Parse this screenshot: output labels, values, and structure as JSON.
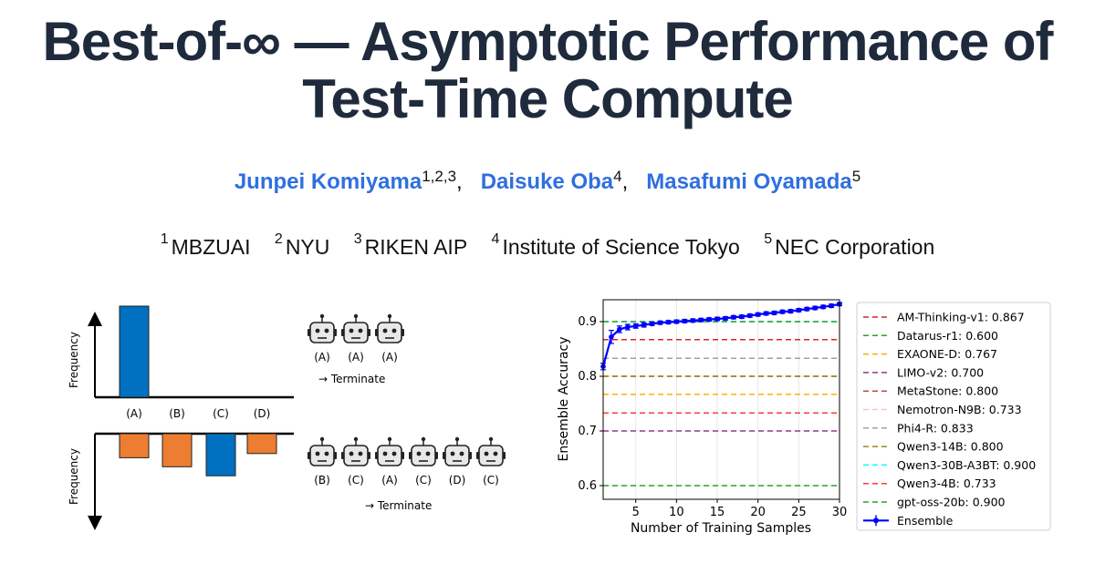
{
  "title_line1": "Best-of-∞ — Asymptotic Performance of",
  "title_line2": "Test-Time Compute",
  "authors": [
    {
      "name": "Junpei Komiyama",
      "sup": "1,2,3",
      "sep": ","
    },
    {
      "name": "Daisuke Oba",
      "sup": "4",
      "sep": ","
    },
    {
      "name": "Masafumi Oyamada",
      "sup": "5",
      "sep": ""
    }
  ],
  "affiliations": [
    {
      "num": "1",
      "name": "MBZUAI"
    },
    {
      "num": "2",
      "name": "NYU"
    },
    {
      "num": "3",
      "name": "RIKEN AIP"
    },
    {
      "num": "4",
      "name": "Institute of Science Tokyo"
    },
    {
      "num": "5",
      "name": "NEC Corporation"
    }
  ],
  "left_figure": {
    "top_panel": {
      "ylabel": "Frequency",
      "categories": [
        "(A)",
        "(B)",
        "(C)",
        "(D)"
      ],
      "values": [
        1.0,
        0,
        0,
        0
      ],
      "bar_color": "#0070c0",
      "robots": [
        "(A)",
        "(A)",
        "(A)"
      ],
      "terminate": "→ Terminate"
    },
    "bottom_panel": {
      "ylabel": "Frequency",
      "values": [
        0.4,
        0.55,
        0.7,
        0.33
      ],
      "colors": [
        "#ed7d31",
        "#ed7d31",
        "#0070c0",
        "#ed7d31"
      ],
      "robots": [
        "(B)",
        "(C)",
        "(A)",
        "(C)",
        "(D)",
        "(C)"
      ],
      "terminate": "→ Terminate"
    }
  },
  "chart_data": {
    "type": "line",
    "xlabel": "Number of Training Samples",
    "ylabel": "Ensemble Accuracy",
    "xlim": [
      1,
      30
    ],
    "ylim": [
      0.575,
      0.94
    ],
    "xticks": [
      5,
      10,
      15,
      20,
      25,
      30
    ],
    "yticks": [
      0.6,
      0.7,
      0.8,
      0.9
    ],
    "grid": true,
    "legend_position": "right",
    "reference_lines": [
      {
        "name": "AM-Thinking-v1: 0.867",
        "value": 0.867,
        "color": "#d62728"
      },
      {
        "name": "Datarus-r1: 0.600",
        "value": 0.6,
        "color": "#2ca02c"
      },
      {
        "name": "EXAONE-D: 0.767",
        "value": 0.767,
        "color": "#ffb000"
      },
      {
        "name": "LIMO-v2: 0.700",
        "value": 0.7,
        "color": "#8e3a8e"
      },
      {
        "name": "MetaStone: 0.800",
        "value": 0.8,
        "color": "#b0504a"
      },
      {
        "name": "Nemotron-N9B: 0.733",
        "value": 0.733,
        "color": "#ffc0cb"
      },
      {
        "name": "Phi4-R: 0.833",
        "value": 0.833,
        "color": "#a0a0a0"
      },
      {
        "name": "Qwen3-14B: 0.800",
        "value": 0.8,
        "color": "#9a8a1a"
      },
      {
        "name": "Qwen3-30B-A3BT: 0.900",
        "value": 0.9,
        "color": "#00ffff"
      },
      {
        "name": "Qwen3-4B: 0.733",
        "value": 0.733,
        "color": "#ff3b3b"
      },
      {
        "name": "gpt-oss-20b: 0.900",
        "value": 0.9,
        "color": "#2ca02c"
      }
    ],
    "series": [
      {
        "name": "Ensemble",
        "color": "#0000ff",
        "x": [
          1,
          2,
          3,
          4,
          5,
          6,
          7,
          8,
          9,
          10,
          11,
          12,
          13,
          14,
          15,
          16,
          17,
          18,
          19,
          20,
          21,
          22,
          23,
          24,
          25,
          26,
          27,
          28,
          29,
          30
        ],
        "y": [
          0.818,
          0.872,
          0.886,
          0.89,
          0.892,
          0.894,
          0.896,
          0.898,
          0.899,
          0.9,
          0.901,
          0.902,
          0.903,
          0.904,
          0.905,
          0.906,
          0.908,
          0.909,
          0.911,
          0.913,
          0.915,
          0.916,
          0.918,
          0.919,
          0.921,
          0.923,
          0.925,
          0.927,
          0.929,
          0.932
        ],
        "err": [
          0.006,
          0.012,
          0.006,
          0.005,
          0.004,
          0.004,
          0.003,
          0.003,
          0.003,
          0.003,
          0.003,
          0.003,
          0.003,
          0.003,
          0.003,
          0.003,
          0.003,
          0.003,
          0.003,
          0.003,
          0.003,
          0.003,
          0.003,
          0.003,
          0.003,
          0.003,
          0.003,
          0.003,
          0.003,
          0.003
        ]
      }
    ]
  }
}
